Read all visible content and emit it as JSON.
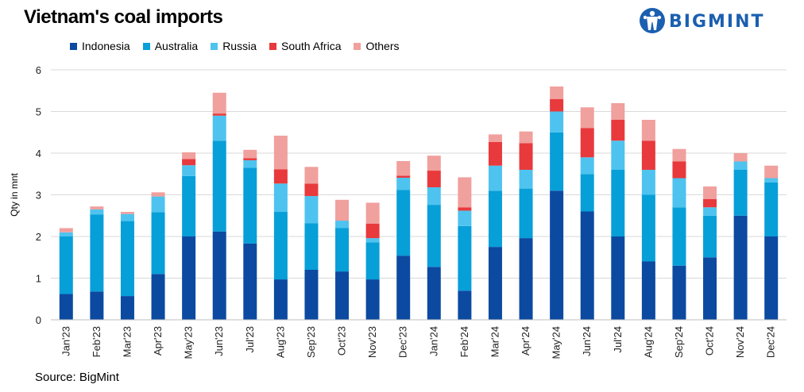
{
  "header": {
    "title": "Vietnam's coal imports"
  },
  "logo": {
    "text": "BIGMINT",
    "color": "#1b5fb0"
  },
  "footer": {
    "source": "Source: BigMint"
  },
  "chart_data": {
    "type": "bar",
    "stacked": true,
    "title": "Vietnam's coal imports",
    "xlabel": "",
    "ylabel": "Qty in mnt",
    "ylim": [
      0,
      6
    ],
    "yticks": [
      0,
      1,
      2,
      3,
      4,
      5,
      6
    ],
    "grid": true,
    "legend_position": "top-left",
    "categories": [
      "Jan'23",
      "Feb'23",
      "Mar'23",
      "Apr'23",
      "May'23",
      "Jun'23",
      "Jul'23",
      "Aug'23",
      "Sep'23",
      "Oct'23",
      "Nov'23",
      "Dec'23",
      "Jan'24",
      "Feb'24",
      "Mar'24",
      "Apr'24",
      "May'24",
      "Jun'24",
      "Jul'24",
      "Aug'24",
      "Sep'24",
      "Oct'24",
      "Nov'24",
      "Dec'24"
    ],
    "series": [
      {
        "name": "Indonesia",
        "color": "#0b4aa0",
        "values": [
          0.62,
          0.68,
          0.57,
          1.1,
          2.0,
          2.12,
          1.83,
          0.97,
          1.2,
          1.16,
          0.97,
          1.54,
          1.27,
          0.7,
          1.75,
          1.96,
          3.1,
          2.6,
          2.0,
          1.4,
          1.3,
          1.5,
          2.5,
          2.0
        ]
      },
      {
        "name": "Australia",
        "color": "#079fd8",
        "values": [
          1.38,
          1.85,
          1.8,
          1.48,
          1.45,
          2.18,
          1.82,
          1.62,
          1.12,
          1.04,
          0.89,
          1.58,
          1.49,
          1.55,
          1.35,
          1.19,
          1.4,
          0.9,
          1.6,
          1.6,
          1.4,
          1.0,
          1.1,
          1.3
        ]
      },
      {
        "name": "Russia",
        "color": "#4ec3ef",
        "values": [
          0.1,
          0.12,
          0.17,
          0.38,
          0.26,
          0.6,
          0.18,
          0.68,
          0.65,
          0.18,
          0.1,
          0.29,
          0.42,
          0.37,
          0.6,
          0.45,
          0.5,
          0.4,
          0.7,
          0.6,
          0.7,
          0.2,
          0.2,
          0.1
        ]
      },
      {
        "name": "South Africa",
        "color": "#e8393c",
        "values": [
          0,
          0,
          0,
          0,
          0.15,
          0.05,
          0.05,
          0.34,
          0.3,
          0,
          0.35,
          0.05,
          0.4,
          0.08,
          0.57,
          0.64,
          0.3,
          0.7,
          0.5,
          0.7,
          0.4,
          0.2,
          0,
          0
        ]
      },
      {
        "name": "Others",
        "color": "#f0a09d",
        "values": [
          0.1,
          0.07,
          0.05,
          0.1,
          0.16,
          0.5,
          0.2,
          0.81,
          0.4,
          0.5,
          0.5,
          0.35,
          0.36,
          0.72,
          0.18,
          0.28,
          0.3,
          0.5,
          0.4,
          0.5,
          0.3,
          0.3,
          0.2,
          0.3
        ]
      }
    ]
  }
}
